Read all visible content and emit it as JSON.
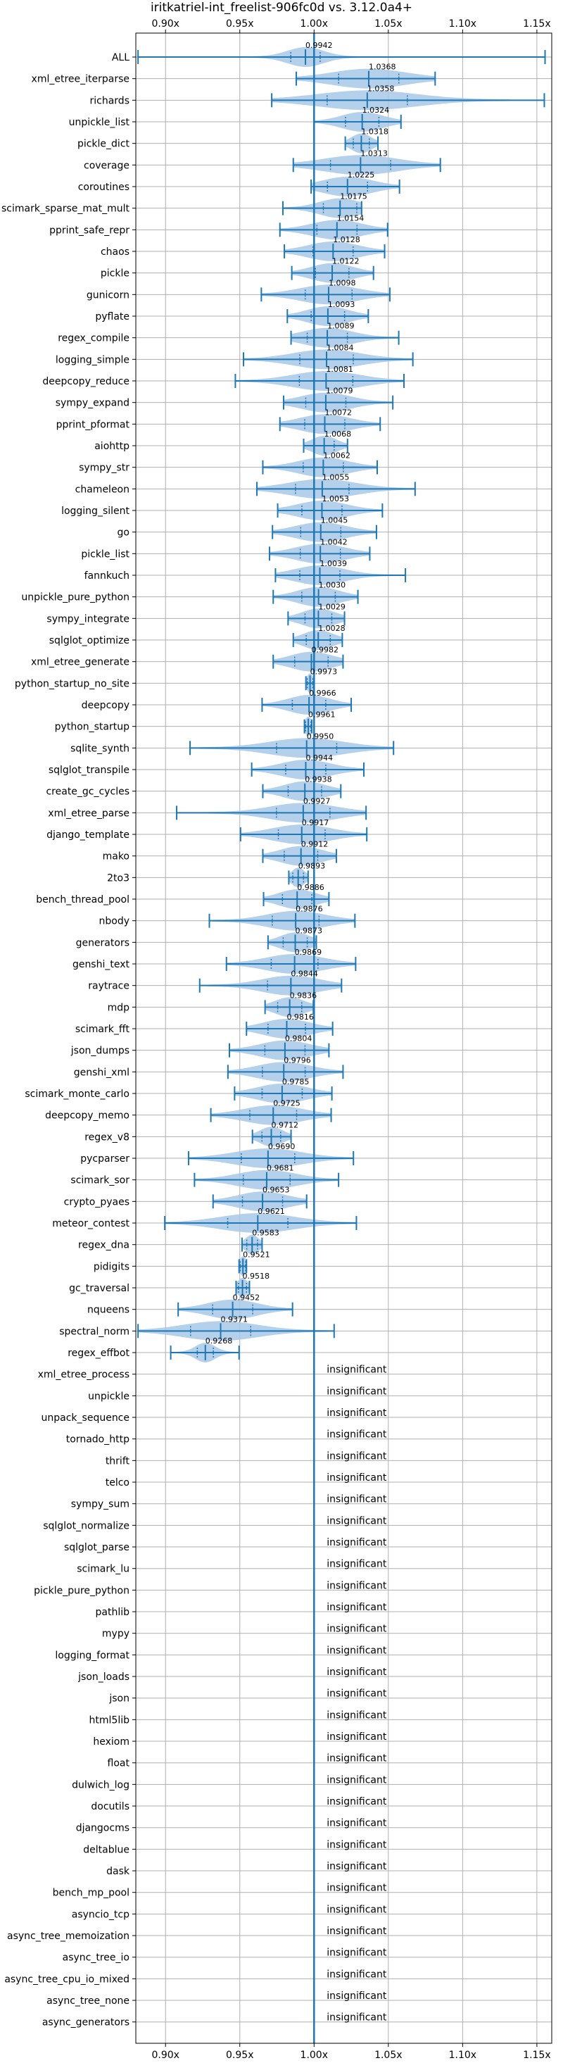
{
  "chart_data": {
    "type": "violin",
    "title": "iritkatriel-int_freelist-906fc0d vs. 3.12.0a4+",
    "xlim": [
      0.88,
      1.16
    ],
    "xticks": [
      0.9,
      0.95,
      1.0,
      1.05,
      1.1,
      1.15
    ],
    "xtick_labels": [
      "0.90x",
      "0.95x",
      "1.00x",
      "1.05x",
      "1.10x",
      "1.15x"
    ],
    "x_ticks_on_top": true,
    "grid": true,
    "reference_line": 1.0,
    "insignificant_label": "insignificant",
    "colors": {
      "accent": "#1f77b4",
      "violin_fill": "#a8c8e6",
      "grid": "#b0b0b0"
    },
    "benchmarks": [
      {
        "name": "ALL",
        "value": 0.9942,
        "value_label": "0.9942",
        "min": 0.8815,
        "max": 1.1555,
        "spread": 0.022
      },
      {
        "name": "xml_etree_iterparse",
        "value": 1.0368,
        "value_label": "1.0368",
        "min": 0.988,
        "max": 1.0815,
        "spread": 0.045
      },
      {
        "name": "richards",
        "value": 1.0358,
        "value_label": "1.0358",
        "min": 0.9715,
        "max": 1.155,
        "spread": 0.06
      },
      {
        "name": "unpickle_list",
        "value": 1.0324,
        "value_label": "1.0324",
        "min": 1.0,
        "max": 1.0585,
        "spread": 0.025
      },
      {
        "name": "pickle_dict",
        "value": 1.0318,
        "value_label": "1.0318",
        "min": 1.021,
        "max": 1.043,
        "spread": 0.012
      },
      {
        "name": "coverage",
        "value": 1.0313,
        "value_label": "1.0313",
        "min": 0.986,
        "max": 1.085,
        "spread": 0.045
      },
      {
        "name": "coroutines",
        "value": 1.0225,
        "value_label": "1.0225",
        "min": 0.998,
        "max": 1.0575,
        "spread": 0.03
      },
      {
        "name": "scimark_sparse_mat_mult",
        "value": 1.0175,
        "value_label": "1.0175",
        "min": 0.979,
        "max": 1.032,
        "spread": 0.025
      },
      {
        "name": "pprint_safe_repr",
        "value": 1.0154,
        "value_label": "1.0154",
        "min": 0.977,
        "max": 1.0495,
        "spread": 0.03
      },
      {
        "name": "chaos",
        "value": 1.0128,
        "value_label": "1.0128",
        "min": 0.98,
        "max": 1.0475,
        "spread": 0.03
      },
      {
        "name": "pickle",
        "value": 1.0122,
        "value_label": "1.0122",
        "min": 0.985,
        "max": 1.04,
        "spread": 0.025
      },
      {
        "name": "gunicorn",
        "value": 1.0098,
        "value_label": "1.0098",
        "min": 0.9645,
        "max": 1.051,
        "spread": 0.035
      },
      {
        "name": "pyflate",
        "value": 1.0093,
        "value_label": "1.0093",
        "min": 0.982,
        "max": 1.0365,
        "spread": 0.025
      },
      {
        "name": "regex_compile",
        "value": 1.0089,
        "value_label": "1.0089",
        "min": 0.9845,
        "max": 1.057,
        "spread": 0.03
      },
      {
        "name": "logging_simple",
        "value": 1.0084,
        "value_label": "1.0084",
        "min": 0.9525,
        "max": 1.0665,
        "spread": 0.04
      },
      {
        "name": "deepcopy_reduce",
        "value": 1.0081,
        "value_label": "1.0081",
        "min": 0.947,
        "max": 1.0605,
        "spread": 0.04
      },
      {
        "name": "sympy_expand",
        "value": 1.0079,
        "value_label": "1.0079",
        "min": 0.9795,
        "max": 1.053,
        "spread": 0.03
      },
      {
        "name": "pprint_pformat",
        "value": 1.0072,
        "value_label": "1.0072",
        "min": 0.977,
        "max": 1.0445,
        "spread": 0.03
      },
      {
        "name": "aiohttp",
        "value": 1.0068,
        "value_label": "1.0068",
        "min": 0.993,
        "max": 1.0225,
        "spread": 0.015
      },
      {
        "name": "sympy_str",
        "value": 1.0062,
        "value_label": "1.0062",
        "min": 0.9655,
        "max": 1.0425,
        "spread": 0.03
      },
      {
        "name": "chameleon",
        "value": 1.0055,
        "value_label": "1.0055",
        "min": 0.9615,
        "max": 1.068,
        "spread": 0.04
      },
      {
        "name": "logging_silent",
        "value": 1.0053,
        "value_label": "1.0053",
        "min": 0.9755,
        "max": 1.046,
        "spread": 0.03
      },
      {
        "name": "go",
        "value": 1.0045,
        "value_label": "1.0045",
        "min": 0.972,
        "max": 1.042,
        "spread": 0.03
      },
      {
        "name": "pickle_list",
        "value": 1.0042,
        "value_label": "1.0042",
        "min": 0.97,
        "max": 1.0375,
        "spread": 0.03
      },
      {
        "name": "fannkuch",
        "value": 1.0039,
        "value_label": "1.0039",
        "min": 0.974,
        "max": 1.0615,
        "spread": 0.03
      },
      {
        "name": "unpickle_pure_python",
        "value": 1.003,
        "value_label": "1.0030",
        "min": 0.9725,
        "max": 1.0295,
        "spread": 0.025
      },
      {
        "name": "sympy_integrate",
        "value": 1.0029,
        "value_label": "1.0029",
        "min": 0.9825,
        "max": 1.0205,
        "spread": 0.02
      },
      {
        "name": "sqlglot_optimize",
        "value": 1.0028,
        "value_label": "1.0028",
        "min": 0.986,
        "max": 1.019,
        "spread": 0.018
      },
      {
        "name": "xml_etree_generate",
        "value": 0.9982,
        "value_label": "0.9982",
        "min": 0.9725,
        "max": 1.0195,
        "spread": 0.025
      },
      {
        "name": "python_startup_no_site",
        "value": 0.9973,
        "value_label": "0.9973",
        "min": 0.9945,
        "max": 1.0,
        "spread": 0.004
      },
      {
        "name": "deepcopy",
        "value": 0.9966,
        "value_label": "0.9966",
        "min": 0.965,
        "max": 1.025,
        "spread": 0.025
      },
      {
        "name": "python_startup",
        "value": 0.9961,
        "value_label": "0.9961",
        "min": 0.9935,
        "max": 0.9985,
        "spread": 0.004
      },
      {
        "name": "sqlite_synth",
        "value": 0.995,
        "value_label": "0.9950",
        "min": 0.9165,
        "max": 1.0535,
        "spread": 0.045
      },
      {
        "name": "sqlglot_transpile",
        "value": 0.9944,
        "value_label": "0.9944",
        "min": 0.958,
        "max": 1.0335,
        "spread": 0.03
      },
      {
        "name": "create_gc_cycles",
        "value": 0.9938,
        "value_label": "0.9938",
        "min": 0.9655,
        "max": 1.018,
        "spread": 0.025
      },
      {
        "name": "xml_etree_parse",
        "value": 0.9927,
        "value_label": "0.9927",
        "min": 0.9075,
        "max": 1.035,
        "spread": 0.04
      },
      {
        "name": "django_template",
        "value": 0.9917,
        "value_label": "0.9917",
        "min": 0.9505,
        "max": 1.0355,
        "spread": 0.035
      },
      {
        "name": "mako",
        "value": 0.9912,
        "value_label": "0.9912",
        "min": 0.9655,
        "max": 1.015,
        "spread": 0.025
      },
      {
        "name": "2to3",
        "value": 0.9893,
        "value_label": "0.9893",
        "min": 0.983,
        "max": 0.996,
        "spread": 0.008
      },
      {
        "name": "bench_thread_pool",
        "value": 0.9886,
        "value_label": "0.9886",
        "min": 0.966,
        "max": 1.01,
        "spread": 0.022
      },
      {
        "name": "nbody",
        "value": 0.9876,
        "value_label": "0.9876",
        "min": 0.9295,
        "max": 1.0275,
        "spread": 0.035
      },
      {
        "name": "generators",
        "value": 0.9873,
        "value_label": "0.9873",
        "min": 0.969,
        "max": 1.0015,
        "spread": 0.018
      },
      {
        "name": "genshi_text",
        "value": 0.9869,
        "value_label": "0.9869",
        "min": 0.941,
        "max": 1.028,
        "spread": 0.035
      },
      {
        "name": "raytrace",
        "value": 0.9844,
        "value_label": "0.9844",
        "min": 0.923,
        "max": 1.0185,
        "spread": 0.035
      },
      {
        "name": "mdp",
        "value": 0.9836,
        "value_label": "0.9836",
        "min": 0.967,
        "max": 0.9995,
        "spread": 0.018
      },
      {
        "name": "scimark_fft",
        "value": 0.9816,
        "value_label": "0.9816",
        "min": 0.9545,
        "max": 1.0125,
        "spread": 0.028
      },
      {
        "name": "json_dumps",
        "value": 0.9804,
        "value_label": "0.9804",
        "min": 0.943,
        "max": 1.01,
        "spread": 0.03
      },
      {
        "name": "genshi_xml",
        "value": 0.9796,
        "value_label": "0.9796",
        "min": 0.942,
        "max": 1.0195,
        "spread": 0.032
      },
      {
        "name": "scimark_monte_carlo",
        "value": 0.9785,
        "value_label": "0.9785",
        "min": 0.9465,
        "max": 1.012,
        "spread": 0.03
      },
      {
        "name": "deepcopy_memo",
        "value": 0.9725,
        "value_label": "0.9725",
        "min": 0.9305,
        "max": 1.0115,
        "spread": 0.035
      },
      {
        "name": "regex_v8",
        "value": 0.9712,
        "value_label": "0.9712",
        "min": 0.9585,
        "max": 0.9845,
        "spread": 0.014
      },
      {
        "name": "pycparser",
        "value": 0.969,
        "value_label": "0.9690",
        "min": 0.9155,
        "max": 1.0265,
        "spread": 0.04
      },
      {
        "name": "scimark_sor",
        "value": 0.9681,
        "value_label": "0.9681",
        "min": 0.9195,
        "max": 1.0165,
        "spread": 0.035
      },
      {
        "name": "crypto_pyaes",
        "value": 0.9653,
        "value_label": "0.9653",
        "min": 0.932,
        "max": 0.995,
        "spread": 0.03
      },
      {
        "name": "meteor_contest",
        "value": 0.9621,
        "value_label": "0.9621",
        "min": 0.8995,
        "max": 1.0285,
        "spread": 0.045
      },
      {
        "name": "regex_dna",
        "value": 0.9583,
        "value_label": "0.9583",
        "min": 0.9515,
        "max": 0.965,
        "spread": 0.008
      },
      {
        "name": "pidigits",
        "value": 0.9521,
        "value_label": "0.9521",
        "min": 0.9495,
        "max": 0.9545,
        "spread": 0.004
      },
      {
        "name": "gc_traversal",
        "value": 0.9518,
        "value_label": "0.9518",
        "min": 0.9475,
        "max": 0.9565,
        "spread": 0.006
      },
      {
        "name": "nqueens",
        "value": 0.9452,
        "value_label": "0.9452",
        "min": 0.9085,
        "max": 0.9855,
        "spread": 0.03
      },
      {
        "name": "spectral_norm",
        "value": 0.9371,
        "value_label": "0.9371",
        "min": 0.8815,
        "max": 1.0135,
        "spread": 0.045
      },
      {
        "name": "regex_effbot",
        "value": 0.9268,
        "value_label": "0.9268",
        "min": 0.9035,
        "max": 0.9495,
        "spread": 0.012
      },
      {
        "name": "xml_etree_process",
        "insignificant": true
      },
      {
        "name": "unpickle",
        "insignificant": true
      },
      {
        "name": "unpack_sequence",
        "insignificant": true
      },
      {
        "name": "tornado_http",
        "insignificant": true
      },
      {
        "name": "thrift",
        "insignificant": true
      },
      {
        "name": "telco",
        "insignificant": true
      },
      {
        "name": "sympy_sum",
        "insignificant": true
      },
      {
        "name": "sqlglot_normalize",
        "insignificant": true
      },
      {
        "name": "sqlglot_parse",
        "insignificant": true
      },
      {
        "name": "scimark_lu",
        "insignificant": true
      },
      {
        "name": "pickle_pure_python",
        "insignificant": true
      },
      {
        "name": "pathlib",
        "insignificant": true
      },
      {
        "name": "mypy",
        "insignificant": true
      },
      {
        "name": "logging_format",
        "insignificant": true
      },
      {
        "name": "json_loads",
        "insignificant": true
      },
      {
        "name": "json",
        "insignificant": true
      },
      {
        "name": "html5lib",
        "insignificant": true
      },
      {
        "name": "hexiom",
        "insignificant": true
      },
      {
        "name": "float",
        "insignificant": true
      },
      {
        "name": "dulwich_log",
        "insignificant": true
      },
      {
        "name": "docutils",
        "insignificant": true
      },
      {
        "name": "djangocms",
        "insignificant": true
      },
      {
        "name": "deltablue",
        "insignificant": true
      },
      {
        "name": "dask",
        "insignificant": true
      },
      {
        "name": "bench_mp_pool",
        "insignificant": true
      },
      {
        "name": "asyncio_tcp",
        "insignificant": true
      },
      {
        "name": "async_tree_memoization",
        "insignificant": true
      },
      {
        "name": "async_tree_io",
        "insignificant": true
      },
      {
        "name": "async_tree_cpu_io_mixed",
        "insignificant": true
      },
      {
        "name": "async_tree_none",
        "insignificant": true
      },
      {
        "name": "async_generators",
        "insignificant": true
      }
    ]
  }
}
